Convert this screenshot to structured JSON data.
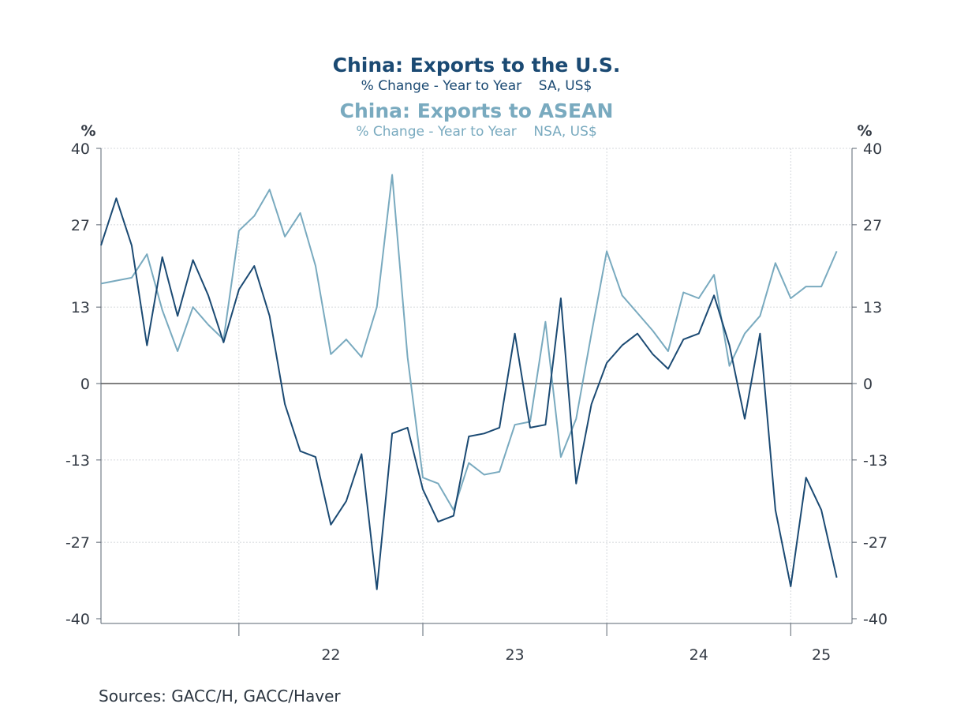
{
  "chart": {
    "title1": "China: Exports to the U.S.",
    "subtitle1": "% Change - Year to Year    SA, US$",
    "title2": "China: Exports to ASEAN",
    "subtitle2": "% Change - Year to Year    NSA, US$",
    "left_unit": "%",
    "right_unit": "%",
    "sources": "Sources:  GACC/H, GACC/Haver",
    "colors": {
      "us": "#1b4a73",
      "asean": "#79aabf"
    }
  },
  "chart_data": {
    "type": "line",
    "x_start": "2021-04",
    "x_end": "2025-05",
    "ylim": [
      -40,
      40
    ],
    "yticks": [
      40,
      27,
      13,
      0,
      -13,
      -27,
      -40
    ],
    "year_labels": [
      "22",
      "23",
      "24",
      "25"
    ],
    "grid": true,
    "series": [
      {
        "name": "China: Exports to the U.S.",
        "unit": "% Change - Year to Year, SA, US$",
        "color": "#1b4a73",
        "values": [
          23.5,
          31.5,
          23.5,
          6.5,
          21.5,
          11.5,
          21.0,
          15.0,
          7.0,
          16.0,
          20.0,
          11.5,
          -3.5,
          -11.5,
          -12.5,
          -24.0,
          -20.0,
          -12.0,
          -35.0,
          -8.5,
          -7.5,
          -18.0,
          -23.5,
          -22.5,
          -9.0,
          -8.5,
          -7.5,
          8.5,
          -7.5,
          -7.0,
          14.5,
          -17.0,
          -3.5,
          3.5,
          6.5,
          8.5,
          5.0,
          2.5,
          7.5,
          8.5,
          15.0,
          6.5,
          -6.0,
          8.5,
          -21.5,
          -34.5,
          -16.0,
          -21.5,
          -33.0
        ]
      },
      {
        "name": "China: Exports to ASEAN",
        "unit": "% Change - Year to Year, NSA, US$",
        "color": "#79aabf",
        "values": [
          17.0,
          17.5,
          18.0,
          22.0,
          12.5,
          5.5,
          13.0,
          10.0,
          7.5,
          26.0,
          28.5,
          33.0,
          25.0,
          29.0,
          20.0,
          5.0,
          7.5,
          4.5,
          13.0,
          35.5,
          4.5,
          -16.0,
          -17.0,
          -21.5,
          -13.5,
          -15.5,
          -15.0,
          -7.0,
          -6.5,
          10.5,
          -12.5,
          -6.0,
          8.5,
          22.5,
          15.0,
          12.0,
          9.0,
          5.5,
          15.5,
          14.5,
          18.5,
          3.0,
          8.5,
          11.5,
          20.5,
          14.5,
          16.5,
          16.5,
          22.5
        ]
      }
    ]
  }
}
